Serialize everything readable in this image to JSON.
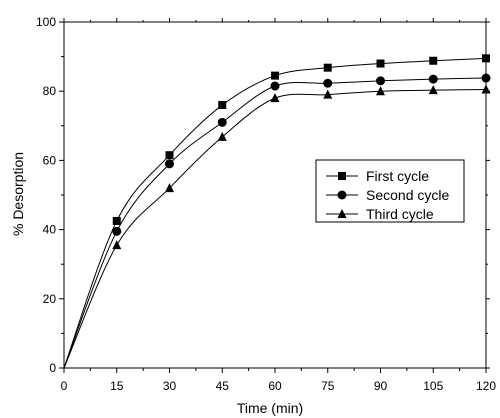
{
  "chart_data": {
    "type": "scatter",
    "xlabel": "Time (min)",
    "ylabel": "% Desorption",
    "xlim": [
      0,
      120
    ],
    "ylim": [
      0,
      100
    ],
    "x_ticks": [
      0,
      15,
      30,
      45,
      60,
      75,
      90,
      105,
      120
    ],
    "y_ticks": [
      0,
      20,
      40,
      60,
      80,
      100
    ],
    "grid": false,
    "legend_position": "right",
    "series": [
      {
        "name": "First cycle",
        "marker": "square",
        "x": [
          0,
          15,
          30,
          45,
          60,
          75,
          90,
          105,
          120
        ],
        "y": [
          0,
          42.5,
          61.5,
          76.0,
          84.5,
          86.8,
          88.0,
          88.8,
          89.5
        ]
      },
      {
        "name": "Second cycle",
        "marker": "circle",
        "x": [
          0,
          15,
          30,
          45,
          60,
          75,
          90,
          105,
          120
        ],
        "y": [
          0,
          39.5,
          59.0,
          71.0,
          81.5,
          82.3,
          83.0,
          83.5,
          83.8
        ]
      },
      {
        "name": "Third cycle",
        "marker": "triangle",
        "x": [
          0,
          15,
          30,
          45,
          60,
          75,
          90,
          105,
          120
        ],
        "y": [
          0,
          35.5,
          52.0,
          66.8,
          78.0,
          79.0,
          80.0,
          80.3,
          80.5
        ]
      }
    ]
  }
}
